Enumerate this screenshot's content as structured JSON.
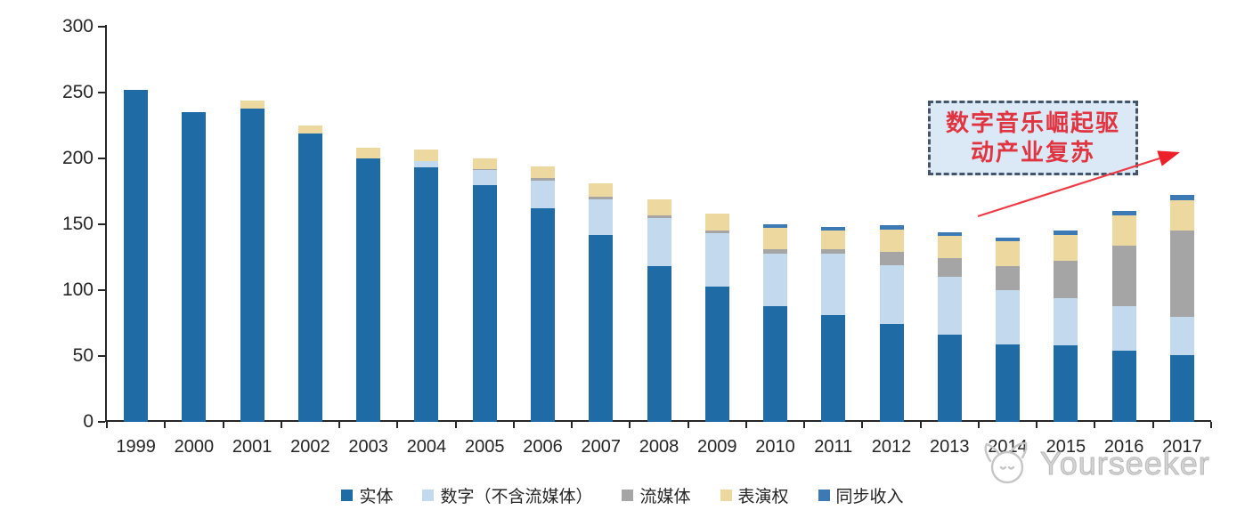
{
  "chart_data": {
    "type": "bar",
    "stacked": true,
    "title": "",
    "xlabel": "",
    "ylabel": "",
    "ylim": [
      0,
      300
    ],
    "ytick_step": 50,
    "grid": false,
    "legend_position": "bottom",
    "categories": [
      "1999",
      "2000",
      "2001",
      "2002",
      "2003",
      "2004",
      "2005",
      "2006",
      "2007",
      "2008",
      "2009",
      "2010",
      "2011",
      "2012",
      "2013",
      "2014",
      "2015",
      "2016",
      "2017"
    ],
    "series": [
      {
        "name": "实体",
        "color": "#1E6BA6",
        "values": [
          252,
          235,
          238,
          219,
          200,
          193,
          180,
          162,
          142,
          118,
          103,
          88,
          81,
          74,
          66,
          59,
          58,
          54,
          51
        ]
      },
      {
        "name": "数字（不含流媒体）",
        "color": "#C3D9ED",
        "values": [
          0,
          0,
          0,
          0,
          0,
          5,
          11,
          21,
          27,
          37,
          40,
          40,
          47,
          45,
          44,
          41,
          36,
          34,
          29
        ]
      },
      {
        "name": "流媒体",
        "color": "#A5A5A5",
        "values": [
          0,
          0,
          0,
          0,
          0,
          0,
          1,
          2,
          2,
          2,
          2,
          3,
          3,
          10,
          14,
          18,
          28,
          46,
          65
        ]
      },
      {
        "name": "表演权",
        "color": "#EDD9A0",
        "values": [
          0,
          0,
          6,
          6,
          8,
          9,
          8,
          9,
          10,
          12,
          13,
          16,
          14,
          17,
          17,
          19,
          20,
          23,
          23
        ]
      },
      {
        "name": "同步收入",
        "color": "#3D7AB5",
        "values": [
          0,
          0,
          0,
          0,
          0,
          0,
          0,
          0,
          0,
          0,
          0,
          3,
          3,
          3,
          3,
          3,
          3,
          3,
          4
        ]
      }
    ],
    "y_tick_labels": [
      "0",
      "50",
      "100",
      "150",
      "200",
      "250",
      "300"
    ]
  },
  "annotation": {
    "line1": "数字音乐崛起驱",
    "line2": "动产业复苏",
    "box_fill": "#dbe8f6",
    "border_color": "#44546a",
    "text_color": "#e03440",
    "arrow_color": "#ed3b45"
  },
  "watermark": {
    "text": "Yourseeker",
    "logo": "cat-logo-icon",
    "color": "#c6c6c6"
  },
  "axis_color": "#262626"
}
